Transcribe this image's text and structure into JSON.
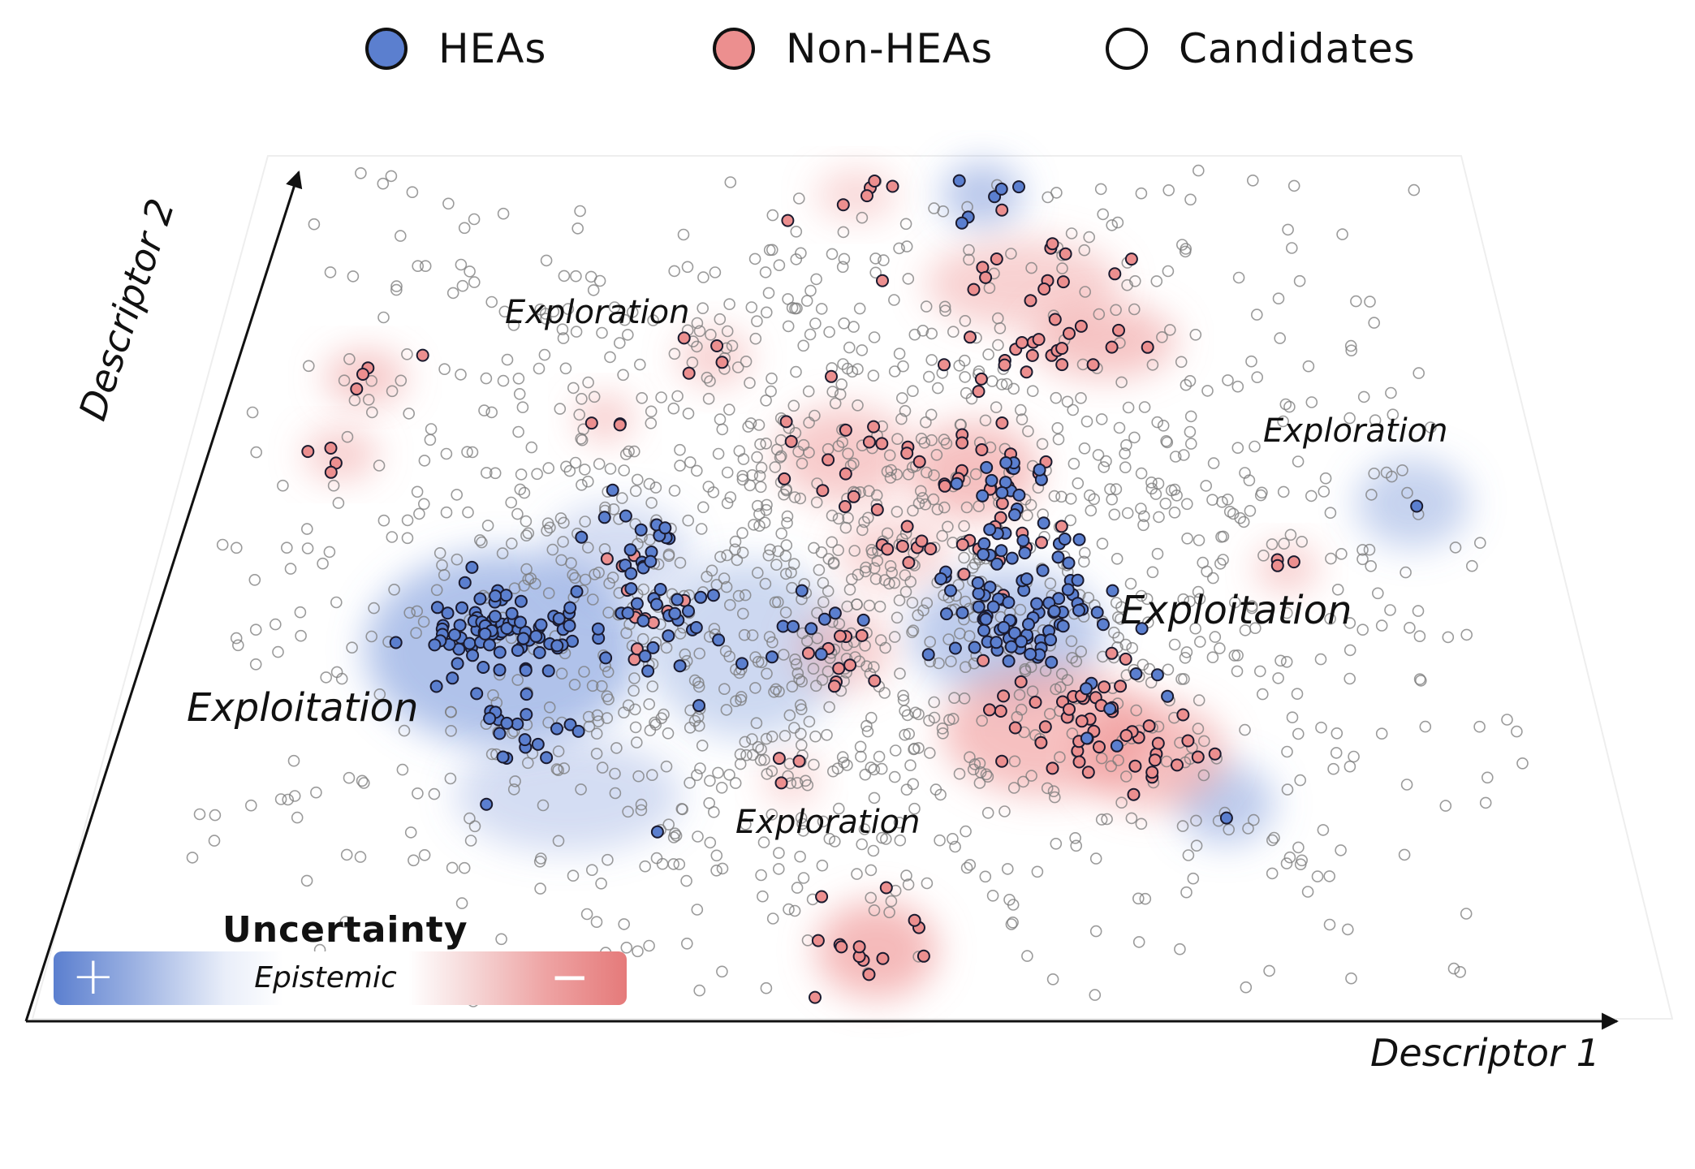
{
  "legend": {
    "heas": "HEAs",
    "non_heas": "Non-HEAs",
    "candidates": "Candidates"
  },
  "axes": {
    "x_label": "Descriptor 1",
    "y_label": "Descriptor 2"
  },
  "regions": {
    "exploration": "Exploration",
    "exploitation": "Exploitation"
  },
  "uncertainty": {
    "title": "Uncertainty",
    "scale_label": "Epistemic",
    "plus": "+",
    "minus": "−"
  },
  "colors": {
    "hea": "#5b7fcf",
    "non_hea": "#ec8f8f",
    "candidate_stroke": "#7a7a7a",
    "high_uncertainty": "#5b7fcf",
    "low_uncertainty": "#e57a7a"
  },
  "chart_data": {
    "type": "scatter",
    "xlabel": "Descriptor 1",
    "ylabel": "Descriptor 2",
    "series": [
      {
        "name": "HEAs"
      },
      {
        "name": "Non-HEAs"
      },
      {
        "name": "Candidates"
      }
    ],
    "annotations": [
      "Exploration",
      "Exploration",
      "Exploration",
      "Exploitation",
      "Exploitation"
    ],
    "background": "uncertainty density (epistemic), blue = high (+), red = low (−)",
    "grid": false,
    "legend_position": "top"
  }
}
